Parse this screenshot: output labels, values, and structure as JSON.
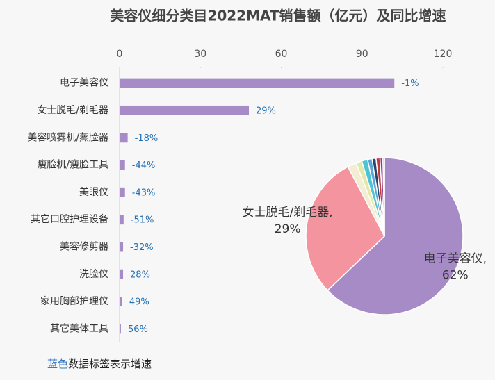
{
  "chart_data": [
    {
      "type": "bar",
      "orientation": "horizontal",
      "title": "美容仪细分类目2022MAT销售额（亿元）及同比增速",
      "categories": [
        "电子美容仪",
        "女士脱毛/剃毛器",
        "美容喷雾机/蒸脸器",
        "瘦脸机/瘦脸工具",
        "美眼仪",
        "其它口腔护理设备",
        "美容修剪器",
        "洗脸仪",
        "家用胸部护理仪",
        "其它美体工具"
      ],
      "series": [
        {
          "name": "销售额",
          "color": "#a78bc6",
          "values": [
            102,
            48,
            3,
            2,
            2,
            1.5,
            1.3,
            1.3,
            1,
            0.5
          ]
        },
        {
          "name": "增速",
          "color": "#1f6fb4",
          "values": [
            -1,
            29,
            -18,
            -44,
            -43,
            -51,
            -32,
            28,
            49,
            56
          ],
          "value_labels": [
            "-1%",
            "29%",
            "-18%",
            "-44%",
            "-43%",
            "-51%",
            "-32%",
            "28%",
            "49%",
            "56%"
          ]
        }
      ],
      "xlim": [
        0,
        120
      ],
      "xticks": [
        0,
        30,
        60,
        90,
        120
      ],
      "note": [
        "蓝色",
        "数据标签表示增速"
      ],
      "note_colors": [
        "#3a78c2",
        "#222222"
      ]
    },
    {
      "type": "pie",
      "categories": [
        "电子美容仪",
        "女士脱毛/剃毛器",
        "美容喷雾机/蒸脸器",
        "瘦脸机/瘦脸工具",
        "美眼仪",
        "其它口腔护理设备",
        "美容修剪器",
        "洗脸仪",
        "家用胸部护理仪",
        "其它美体工具"
      ],
      "values": [
        62,
        29,
        1.8,
        1.2,
        1.2,
        0.9,
        0.8,
        0.8,
        0.6,
        0.3
      ],
      "slice_labels": [
        "电子美容仪,",
        "女士脱毛/剃毛器,",
        null,
        null,
        null,
        null,
        null,
        null,
        null,
        null
      ],
      "value_labels": [
        "62%",
        "29%",
        null,
        null,
        null,
        null,
        null,
        null,
        null,
        null
      ],
      "colors": [
        "#a78bc6",
        "#f4949f",
        "#f3eed3",
        "#e4e8a8",
        "#4ec3d3",
        "#5ba6d8",
        "#26476d",
        "#c33b3b",
        "#8e3b8e",
        "#9a9a9a"
      ]
    }
  ]
}
